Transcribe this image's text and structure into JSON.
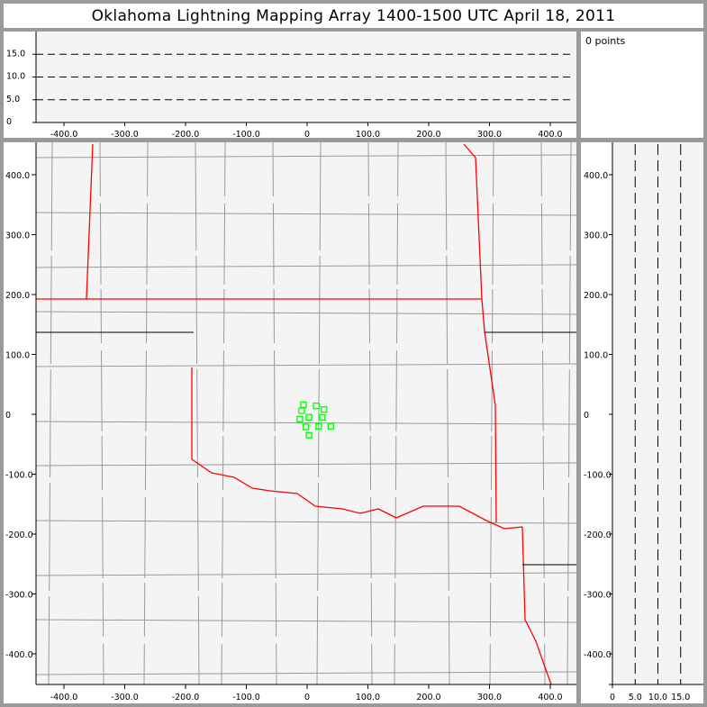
{
  "title": "Oklahoma Lightning Mapping Array   1400-1500 UTC  April 18, 2011",
  "info": {
    "points_label": "0 points"
  },
  "colors": {
    "background_frame": "#9a9a9a",
    "plot_bg": "#f4f4f4",
    "county_lines": "#9a9a9a",
    "state_border": "#ff0000",
    "station_markers": "#00ff00"
  },
  "top_panel": {
    "x_ticks": [
      "-400.0",
      "-300.0",
      "-200.0",
      "-100.0",
      "0",
      "100.0",
      "200.0",
      "300.0",
      "400.0"
    ],
    "y_ticks": [
      "0",
      "5.0",
      "10.0",
      "15.0"
    ],
    "dashed_levels_km": [
      5,
      10,
      15
    ]
  },
  "main_panel": {
    "x_ticks": [
      "-400.0",
      "-300.0",
      "-200.0",
      "-100.0",
      "0",
      "100.0",
      "200.0",
      "300.0",
      "400.0"
    ],
    "y_ticks": [
      "400.0",
      "300.0",
      "200.0",
      "100.0",
      "0",
      "-100.0",
      "-200.0",
      "-300.0",
      "-400.0"
    ],
    "x_range_km": [
      -445,
      445
    ],
    "y_range_km": [
      -455,
      450
    ],
    "station_markers_km": [
      [
        -6,
        16
      ],
      [
        15,
        14
      ],
      [
        28,
        8
      ],
      [
        -9,
        6
      ],
      [
        3,
        -5
      ],
      [
        25,
        -5
      ],
      [
        -12,
        -8
      ],
      [
        -2,
        -21
      ],
      [
        19,
        -20
      ],
      [
        39,
        -20
      ],
      [
        3,
        -35
      ]
    ]
  },
  "side_panel": {
    "x_ticks": [
      "0",
      "5.0",
      "10.0",
      "15.0"
    ],
    "y_ticks": [
      "400.0",
      "300.0",
      "200.0",
      "100.0",
      "0",
      "-100.0",
      "-200.0",
      "-300.0",
      "-400.0"
    ],
    "dashed_levels_km": [
      5,
      10,
      15
    ]
  }
}
